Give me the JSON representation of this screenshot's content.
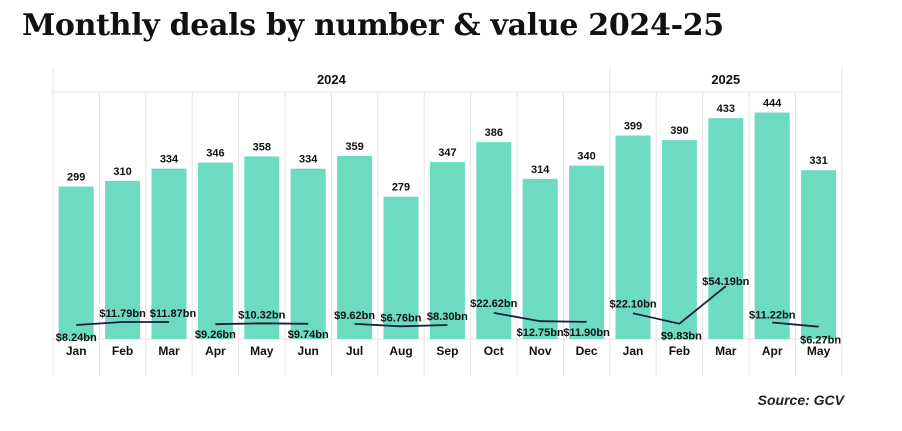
{
  "title": "Monthly deals by number & value 2024-25",
  "source": "Source: GCV",
  "colors": {
    "bar": "#6cdbc2",
    "line": "#1b1f3b",
    "grid": "#e4e4e4",
    "text": "#111111"
  },
  "chart_data": {
    "type": "bar",
    "title": "Monthly deals by number & value 2024-25",
    "year_groups": [
      {
        "label": "2024",
        "start": 0,
        "end": 11
      },
      {
        "label": "2025",
        "start": 12,
        "end": 16
      }
    ],
    "categories": [
      "Jan",
      "Feb",
      "Mar",
      "Apr",
      "May",
      "Jun",
      "Jul",
      "Aug",
      "Sep",
      "Oct",
      "Nov",
      "Dec",
      "Jan",
      "Feb",
      "Mar",
      "Apr",
      "May"
    ],
    "series": [
      {
        "type": "bar",
        "values": [
          299,
          310,
          334,
          346,
          358,
          334,
          359,
          279,
          347,
          386,
          314,
          340,
          399,
          390,
          433,
          444,
          331
        ],
        "labels": [
          "299",
          "310",
          "334",
          "346",
          "358",
          "334",
          "359",
          "279",
          "347",
          "386",
          "314",
          "340",
          "399",
          "390",
          "433",
          "444",
          "331"
        ]
      },
      {
        "type": "line",
        "segments": [
          [
            0,
            2
          ],
          [
            3,
            5
          ],
          [
            6,
            8
          ],
          [
            9,
            11
          ],
          [
            12,
            14
          ],
          [
            15,
            16
          ]
        ],
        "values": [
          8.24,
          11.79,
          11.87,
          9.26,
          10.32,
          9.74,
          9.62,
          6.76,
          8.3,
          22.62,
          12.75,
          11.9,
          22.1,
          9.83,
          54.19,
          11.22,
          6.27
        ],
        "labels": [
          "$8.24bn",
          "$11.79bn",
          "$11.87bn",
          "$9.26bn",
          "$10.32bn",
          "$9.74bn",
          "$9.62bn",
          "$6.76bn",
          "$8.30bn",
          "$22.62bn",
          "$12.75bn",
          "$11.90bn",
          "$22.10bn",
          "$9.83bn",
          "$54.19bn",
          "$11.22bn",
          "$6.27bn"
        ]
      }
    ],
    "grid": true,
    "legend": "none"
  }
}
